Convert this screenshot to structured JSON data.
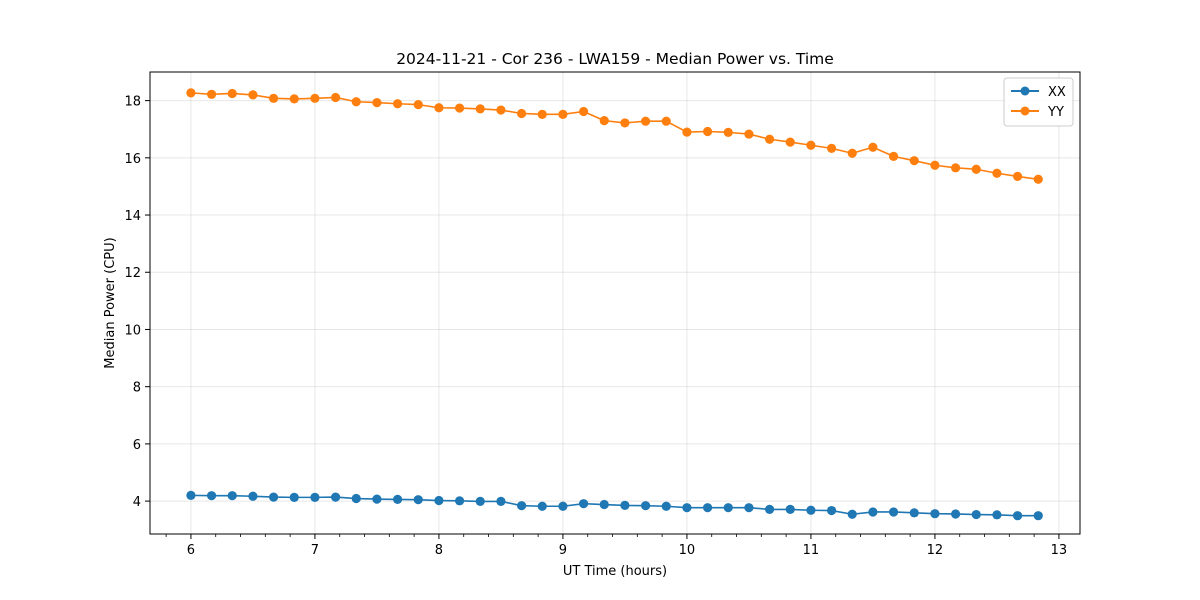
{
  "chart_data": {
    "type": "line",
    "title": "2024-11-21 - Cor 236 - LWA159 - Median Power vs. Time",
    "xlabel": "UT Time (hours)",
    "ylabel": "Median Power (CPU)",
    "xlim": [
      5.67,
      13.17
    ],
    "ylim": [
      2.85,
      19.0
    ],
    "xticks": [
      6,
      7,
      8,
      9,
      10,
      11,
      12,
      13
    ],
    "yticks": [
      4,
      6,
      8,
      10,
      12,
      14,
      16,
      18
    ],
    "grid": true,
    "legend_position": "top-right",
    "x": [
      6.0,
      6.1667,
      6.3333,
      6.5,
      6.6667,
      6.8333,
      7.0,
      7.1667,
      7.3333,
      7.5,
      7.6667,
      7.8333,
      8.0,
      8.1667,
      8.3333,
      8.5,
      8.6667,
      8.8333,
      9.0,
      9.1667,
      9.3333,
      9.5,
      9.6667,
      9.8333,
      10.0,
      10.1667,
      10.3333,
      10.5,
      10.6667,
      10.8333,
      11.0,
      11.1667,
      11.3333,
      11.5,
      11.6667,
      11.8333,
      12.0,
      12.1667,
      12.3333,
      12.5,
      12.6667,
      12.8333
    ],
    "series": [
      {
        "name": "XX",
        "color": "#1f77b4",
        "values": [
          4.2,
          4.19,
          4.19,
          4.17,
          4.14,
          4.13,
          4.13,
          4.14,
          4.09,
          4.07,
          4.06,
          4.05,
          4.02,
          4.01,
          3.99,
          3.99,
          3.84,
          3.82,
          3.82,
          3.91,
          3.88,
          3.85,
          3.84,
          3.82,
          3.77,
          3.77,
          3.77,
          3.77,
          3.71,
          3.71,
          3.68,
          3.67,
          3.54,
          3.62,
          3.62,
          3.59,
          3.56,
          3.55,
          3.53,
          3.52,
          3.49,
          3.49
        ]
      },
      {
        "name": "YY",
        "color": "#ff7f0e",
        "values": [
          18.27,
          18.22,
          18.25,
          18.2,
          18.08,
          18.06,
          18.08,
          18.11,
          17.96,
          17.93,
          17.89,
          17.86,
          17.75,
          17.74,
          17.71,
          17.67,
          17.55,
          17.52,
          17.52,
          17.62,
          17.3,
          17.22,
          17.28,
          17.28,
          16.9,
          16.92,
          16.89,
          16.83,
          16.65,
          16.55,
          16.44,
          16.33,
          16.16,
          16.37,
          16.05,
          15.9,
          15.74,
          15.65,
          15.6,
          15.46,
          15.35,
          15.25
        ]
      }
    ]
  }
}
